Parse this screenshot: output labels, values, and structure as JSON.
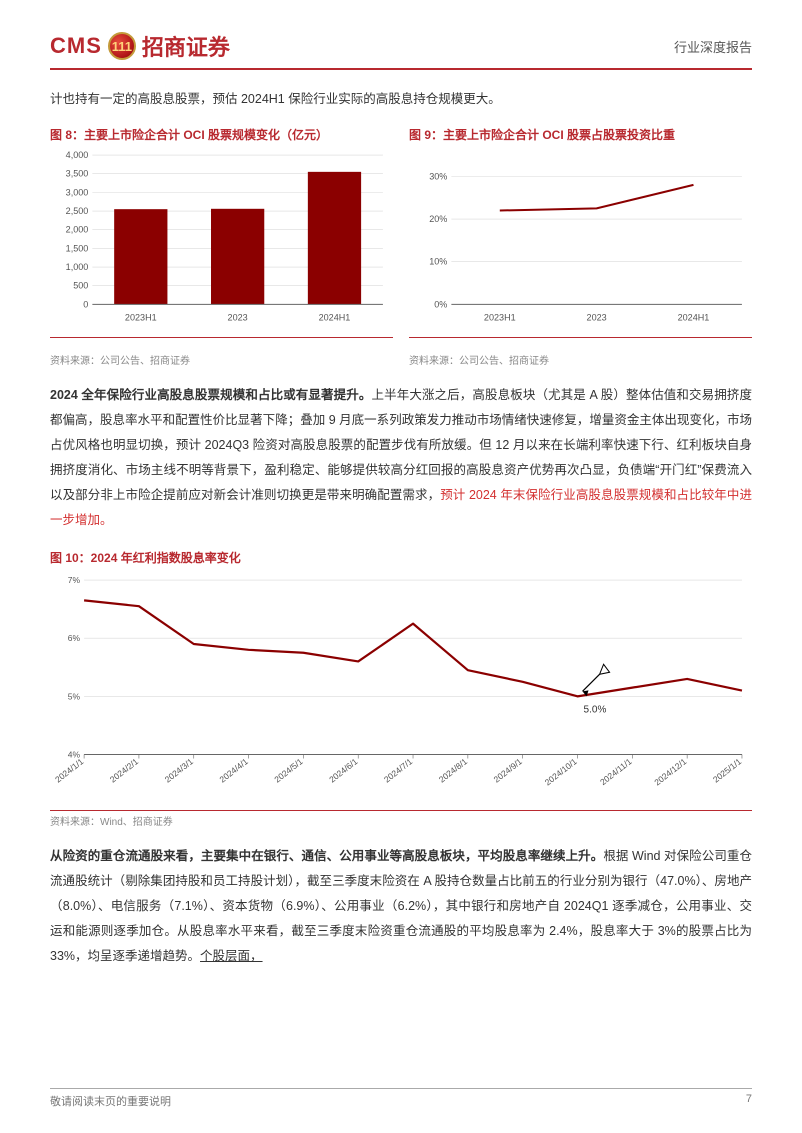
{
  "header": {
    "cms": "CMS",
    "badge": "111",
    "cn": "招商证券",
    "doc_type": "行业深度报告",
    "cms_color": "#b8292f",
    "cn_color": "#b8292f"
  },
  "intro": "计也持有一定的高股息股票，预估 2024H1 保险行业实际的高股息持仓规模更大。",
  "chart8": {
    "title": "图 8：主要上市险企合计 OCI 股票规模变化（亿元）",
    "type": "bar",
    "categories": [
      "2023H1",
      "2023",
      "2024H1"
    ],
    "values": [
      2550,
      2560,
      3550
    ],
    "ylim": [
      0,
      4000
    ],
    "ytick_step": 500,
    "bar_color": "#8b0000",
    "grid_color": "#d9d9d9",
    "axis_color": "#666666",
    "label_fontsize": 9,
    "source": "资料来源：公司公告、招商证券"
  },
  "chart9": {
    "title": "图 9：主要上市险企合计 OCI 股票占股票投资比重",
    "type": "line",
    "categories": [
      "2023H1",
      "2023",
      "2024H1"
    ],
    "values": [
      22,
      22.5,
      28
    ],
    "ylim": [
      0,
      35
    ],
    "yticks": [
      0,
      10,
      20,
      30
    ],
    "ytick_labels": [
      "0%",
      "10%",
      "20%",
      "30%"
    ],
    "line_color": "#8b0000",
    "line_width": 2,
    "grid_color": "#d9d9d9",
    "axis_color": "#666666",
    "label_fontsize": 9,
    "source": "资料来源：公司公告、招商证券"
  },
  "para1": {
    "bold_lead": "2024 全年保险行业高股息股票规模和占比或有显著提升。",
    "body": "上半年大涨之后，高股息板块（尤其是 A 股）整体估值和交易拥挤度都偏高，股息率水平和配置性价比显著下降；叠加 9 月底一系列政策发力推动市场情绪快速修复，增量资金主体出现变化，市场占优风格也明显切换，预计 2024Q3 险资对高股息股票的配置步伐有所放缓。但 12 月以来在长端利率快速下行、红利板块自身拥挤度消化、市场主线不明等背景下，盈利稳定、能够提供较高分红回报的高股息资产优势再次凸显，负债端“开门红”保费流入以及部分非上市险企提前应对新会计准则切换更是带来明确配置需求，",
    "red_tail": "预计 2024 年末保险行业高股息股票规模和占比较年中进一步增加。"
  },
  "chart10": {
    "title": "图 10：2024 年红利指数股息率变化",
    "type": "line",
    "x_labels": [
      "2024/1/1",
      "2024/2/1",
      "2024/3/1",
      "2024/4/1",
      "2024/5/1",
      "2024/6/1",
      "2024/7/1",
      "2024/8/1",
      "2024/9/1",
      "2024/10/1",
      "2024/11/1",
      "2024/12/1",
      "2025/1/1"
    ],
    "values": [
      6.65,
      6.55,
      5.9,
      5.8,
      5.75,
      5.6,
      6.25,
      5.45,
      5.25,
      5.0,
      5.15,
      5.3,
      5.1
    ],
    "ylim": [
      4,
      7
    ],
    "yticks": [
      4,
      5,
      6,
      7
    ],
    "ytick_labels": [
      "4%",
      "5%",
      "6%",
      "7%"
    ],
    "line_color": "#8b0000",
    "line_width": 2.2,
    "grid_color": "#d9d9d9",
    "axis_color": "#666666",
    "label_fontsize": 8.5,
    "annotation_label": "5.0%",
    "annotation_index": 9,
    "source": "资料来源：Wind、招商证券"
  },
  "para2": {
    "bold_lead": "从险资的重仓流通股来看，主要集中在银行、通信、公用事业等高股息板块，平均股息率继续上升。",
    "body": "根据 Wind 对保险公司重仓流通股统计（剔除集团持股和员工持股计划），截至三季度末险资在 A 股持仓数量占比前五的行业分别为银行（47.0%）、房地产（8.0%）、电信服务（7.1%）、资本货物（6.9%）、公用事业（6.2%），其中银行和房地产自 2024Q1 逐季减仓，公用事业、交运和能源则逐季加仓。从股息率水平来看，截至三季度末险资重仓流通股的平均股息率为 2.4%，股息率大于 3%的股票占比为 33%，均呈逐季递增趋势。",
    "underline_tail": "个股层面，"
  },
  "footer": {
    "note": "敬请阅读末页的重要说明",
    "page": "7"
  }
}
